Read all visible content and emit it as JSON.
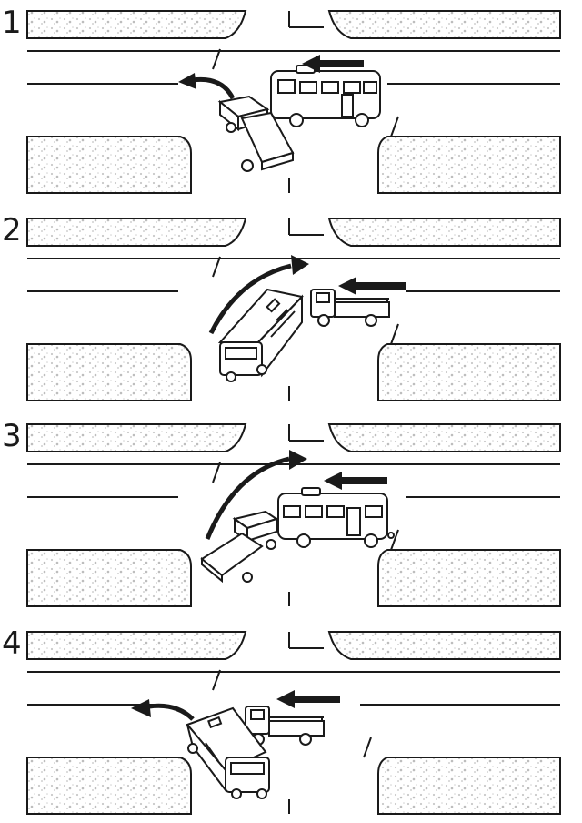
{
  "figure": {
    "panels": [
      {
        "number": "1",
        "scenario": "truck-left-turn-bus-straight"
      },
      {
        "number": "2",
        "scenario": "bus-right-turn-truck-straight"
      },
      {
        "number": "3",
        "scenario": "truck-right-turn-bus-straight"
      },
      {
        "number": "4",
        "scenario": "bus-left-turn-truck-straight"
      }
    ]
  },
  "colors": {
    "ink": "#1a1a1a",
    "sidewalk_texture": "#c9c9c9",
    "road": "#ffffff",
    "vehicle_fill": "#ffffff"
  },
  "icons": {
    "bus": "bus-icon",
    "truck": "flatbed-truck-icon",
    "straight_arrow": "arrow-left-icon",
    "turn_arrow": "curved-arrow-icon"
  }
}
